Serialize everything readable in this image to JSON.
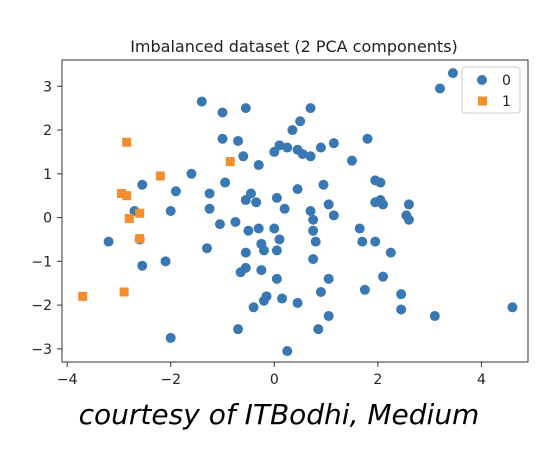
{
  "caption": "courtesy of ITBodhi, Medium",
  "chart_data": {
    "type": "scatter",
    "title": "Imbalanced dataset (2 PCA components)",
    "xlabel": "",
    "ylabel": "",
    "xlim": [
      -4.1,
      4.9
    ],
    "ylim": [
      -3.3,
      3.6
    ],
    "xticks": [
      -4,
      -2,
      0,
      2,
      4
    ],
    "yticks": [
      -3,
      -2,
      -1,
      0,
      1,
      2,
      3
    ],
    "grid": false,
    "legend_position": "top-right",
    "series": [
      {
        "name": "0",
        "marker": "circle",
        "color": "#3a78b4",
        "points": [
          [
            3.45,
            3.3
          ],
          [
            3.2,
            2.95
          ],
          [
            -1.4,
            2.65
          ],
          [
            -0.55,
            2.5
          ],
          [
            -1.0,
            2.4
          ],
          [
            0.7,
            2.5
          ],
          [
            0.5,
            2.2
          ],
          [
            0.35,
            2.0
          ],
          [
            -1.0,
            1.8
          ],
          [
            -0.7,
            1.75
          ],
          [
            0.1,
            1.65
          ],
          [
            0.25,
            1.6
          ],
          [
            0.55,
            1.45
          ],
          [
            0.45,
            1.55
          ],
          [
            0.7,
            1.4
          ],
          [
            0.9,
            1.6
          ],
          [
            1.15,
            1.7
          ],
          [
            1.8,
            1.8
          ],
          [
            1.5,
            1.3
          ],
          [
            -0.6,
            1.4
          ],
          [
            -0.3,
            1.2
          ],
          [
            0.0,
            1.5
          ],
          [
            -1.6,
            1.0
          ],
          [
            -1.9,
            0.6
          ],
          [
            -1.25,
            0.55
          ],
          [
            -0.95,
            0.8
          ],
          [
            -0.45,
            0.55
          ],
          [
            -0.35,
            0.35
          ],
          [
            -0.55,
            0.4
          ],
          [
            0.05,
            0.45
          ],
          [
            0.45,
            0.65
          ],
          [
            0.95,
            0.75
          ],
          [
            1.95,
            0.85
          ],
          [
            2.05,
            0.8
          ],
          [
            -2.55,
            0.75
          ],
          [
            -2.7,
            0.15
          ],
          [
            -2.0,
            0.15
          ],
          [
            -1.25,
            0.2
          ],
          [
            -1.05,
            -0.15
          ],
          [
            -0.75,
            -0.1
          ],
          [
            -0.5,
            -0.3
          ],
          [
            -0.3,
            -0.25
          ],
          [
            0.0,
            -0.25
          ],
          [
            0.2,
            0.2
          ],
          [
            0.7,
            0.15
          ],
          [
            0.75,
            -0.05
          ],
          [
            1.05,
            0.3
          ],
          [
            1.15,
            0.05
          ],
          [
            1.95,
            0.35
          ],
          [
            2.1,
            0.3
          ],
          [
            2.05,
            0.4
          ],
          [
            2.6,
            0.3
          ],
          [
            2.55,
            0.05
          ],
          [
            2.6,
            -0.05
          ],
          [
            1.65,
            -0.25
          ],
          [
            1.7,
            -0.55
          ],
          [
            1.95,
            -0.55
          ],
          [
            2.25,
            -0.8
          ],
          [
            0.75,
            -0.3
          ],
          [
            0.8,
            -0.55
          ],
          [
            0.1,
            -0.5
          ],
          [
            -0.25,
            -0.6
          ],
          [
            -0.2,
            -0.75
          ],
          [
            0.05,
            -0.75
          ],
          [
            -0.55,
            -0.8
          ],
          [
            -1.3,
            -0.7
          ],
          [
            -3.2,
            -0.55
          ],
          [
            -2.6,
            -0.5
          ],
          [
            -2.1,
            -1.0
          ],
          [
            -2.55,
            -1.1
          ],
          [
            -0.65,
            -1.25
          ],
          [
            -0.55,
            -1.15
          ],
          [
            -0.25,
            -1.2
          ],
          [
            0.05,
            -1.4
          ],
          [
            0.75,
            -0.95
          ],
          [
            1.05,
            -1.4
          ],
          [
            1.75,
            -1.65
          ],
          [
            2.1,
            -1.35
          ],
          [
            0.9,
            -1.7
          ],
          [
            0.45,
            -1.95
          ],
          [
            0.15,
            -1.85
          ],
          [
            -0.15,
            -1.8
          ],
          [
            -0.2,
            -1.9
          ],
          [
            -0.4,
            -2.05
          ],
          [
            2.45,
            -1.75
          ],
          [
            2.45,
            -2.1
          ],
          [
            1.05,
            -2.25
          ],
          [
            0.85,
            -2.55
          ],
          [
            -0.7,
            -2.55
          ],
          [
            3.1,
            -2.25
          ],
          [
            4.6,
            -2.05
          ],
          [
            -2.0,
            -2.75
          ],
          [
            0.25,
            -3.05
          ]
        ]
      },
      {
        "name": "1",
        "marker": "square",
        "color": "#f28e2b",
        "points": [
          [
            -2.85,
            1.72
          ],
          [
            -2.2,
            0.95
          ],
          [
            -0.85,
            1.28
          ],
          [
            -2.95,
            0.55
          ],
          [
            -2.85,
            0.5
          ],
          [
            -2.6,
            0.1
          ],
          [
            -2.8,
            -0.02
          ],
          [
            -2.6,
            -0.48
          ],
          [
            -3.7,
            -1.8
          ],
          [
            -2.9,
            -1.7
          ]
        ]
      }
    ]
  }
}
